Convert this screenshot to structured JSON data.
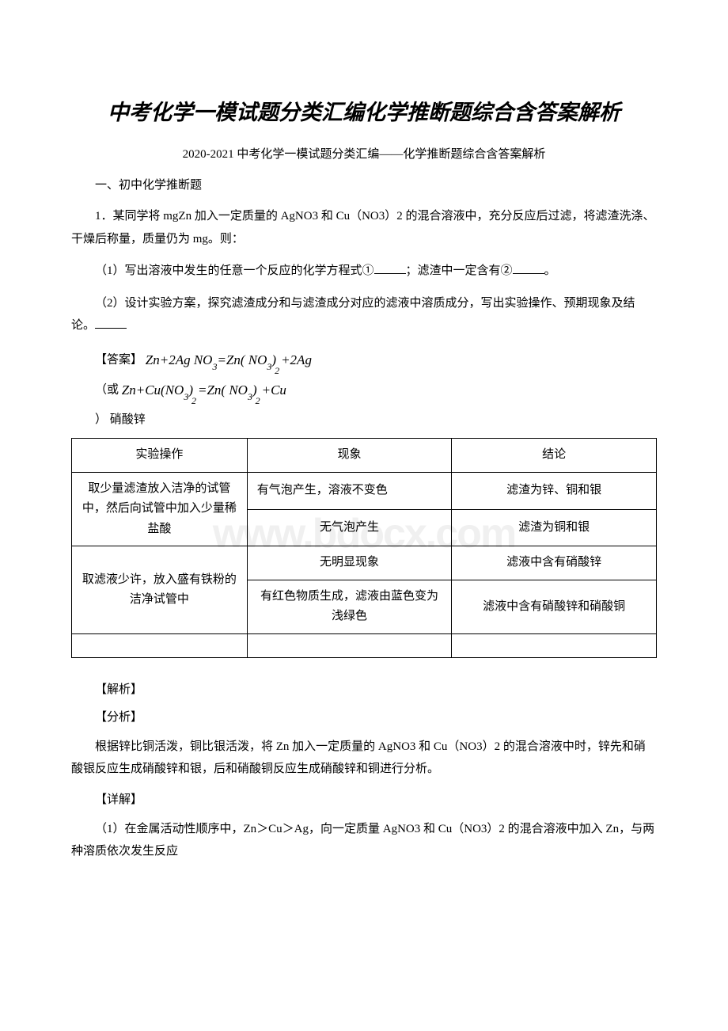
{
  "title": "中考化学一模试题分类汇编化学推断题综合含答案解析",
  "subtitle": "2020-2021 中考化学一模试题分类汇编——化学推断题综合含答案解析",
  "section_header": "一、初中化学推断题",
  "question": {
    "stem": "1．某同学将 mgZn 加入一定质量的 AgNO3 和 Cu（NO3）2 的混合溶液中，充分反应后过滤，将滤渣洗涤、干燥后称量，质量仍为 mg。则：",
    "part1_prefix": "（1）写出溶液中发生的任意一个反应的化学方程式①",
    "part1_middle": "；滤渣中一定含有②",
    "part1_suffix": "。",
    "part2": "（2）设计实验方案，探究滤渣成分和与滤渣成分对应的滤液中溶质成分，写出实验操作、预期现象及结论。"
  },
  "answer": {
    "label": "【答案】",
    "eq1_parts": [
      "Zn",
      "+",
      "2A",
      "g",
      "NO",
      "3",
      "=",
      "Zn",
      "(",
      "NO",
      "3",
      ")",
      "2",
      "+",
      "2A",
      "g"
    ],
    "or_prefix": "（或",
    "eq2_parts": [
      "Zn",
      "+",
      "Cu",
      "(",
      "NO",
      "3",
      ")",
      "2",
      "=",
      "Zn",
      "(",
      "NO",
      "3",
      ")",
      "2",
      "+",
      "Cu"
    ],
    "end_line": "）  硝酸锌"
  },
  "table": {
    "headers": [
      "实验操作",
      "现象",
      "结论"
    ],
    "rows": [
      {
        "op": "取少量滤渣放入洁净的试管中，然后向试管中加入少量稀盐酸",
        "phenom": "有气泡产生，溶液不变色",
        "concl": "滤渣为锌、铜和银",
        "rowspan": 2
      },
      {
        "phenom": "无气泡产生",
        "concl": "滤渣为铜和银"
      },
      {
        "op": "取滤液少许，放入盛有铁粉的洁净试管中",
        "phenom": "无明显现象",
        "concl": "滤液中含有硝酸锌",
        "rowspan": 2
      },
      {
        "phenom": "有红色物质生成，滤液由蓝色变为浅绿色",
        "concl": "滤液中含有硝酸锌和硝酸铜"
      }
    ]
  },
  "explanation": {
    "label1": "【解析】",
    "label2": "【分析】",
    "analysis": "根据锌比铜活泼，铜比银活泼，将 Zn 加入一定质量的 AgNO3 和 Cu（NO3）2 的混合溶液中时，锌先和硝酸银反应生成硝酸锌和银，后和硝酸铜反应生成硝酸锌和铜进行分析。",
    "label3": "【详解】",
    "detail": "（1）在金属活动性顺序中，Zn＞Cu＞Ag，向一定质量 AgNO3 和 Cu（NO3）2 的混合溶液中加入 Zn，与两种溶质依次发生反应"
  },
  "watermark": "www.bdocx.com"
}
